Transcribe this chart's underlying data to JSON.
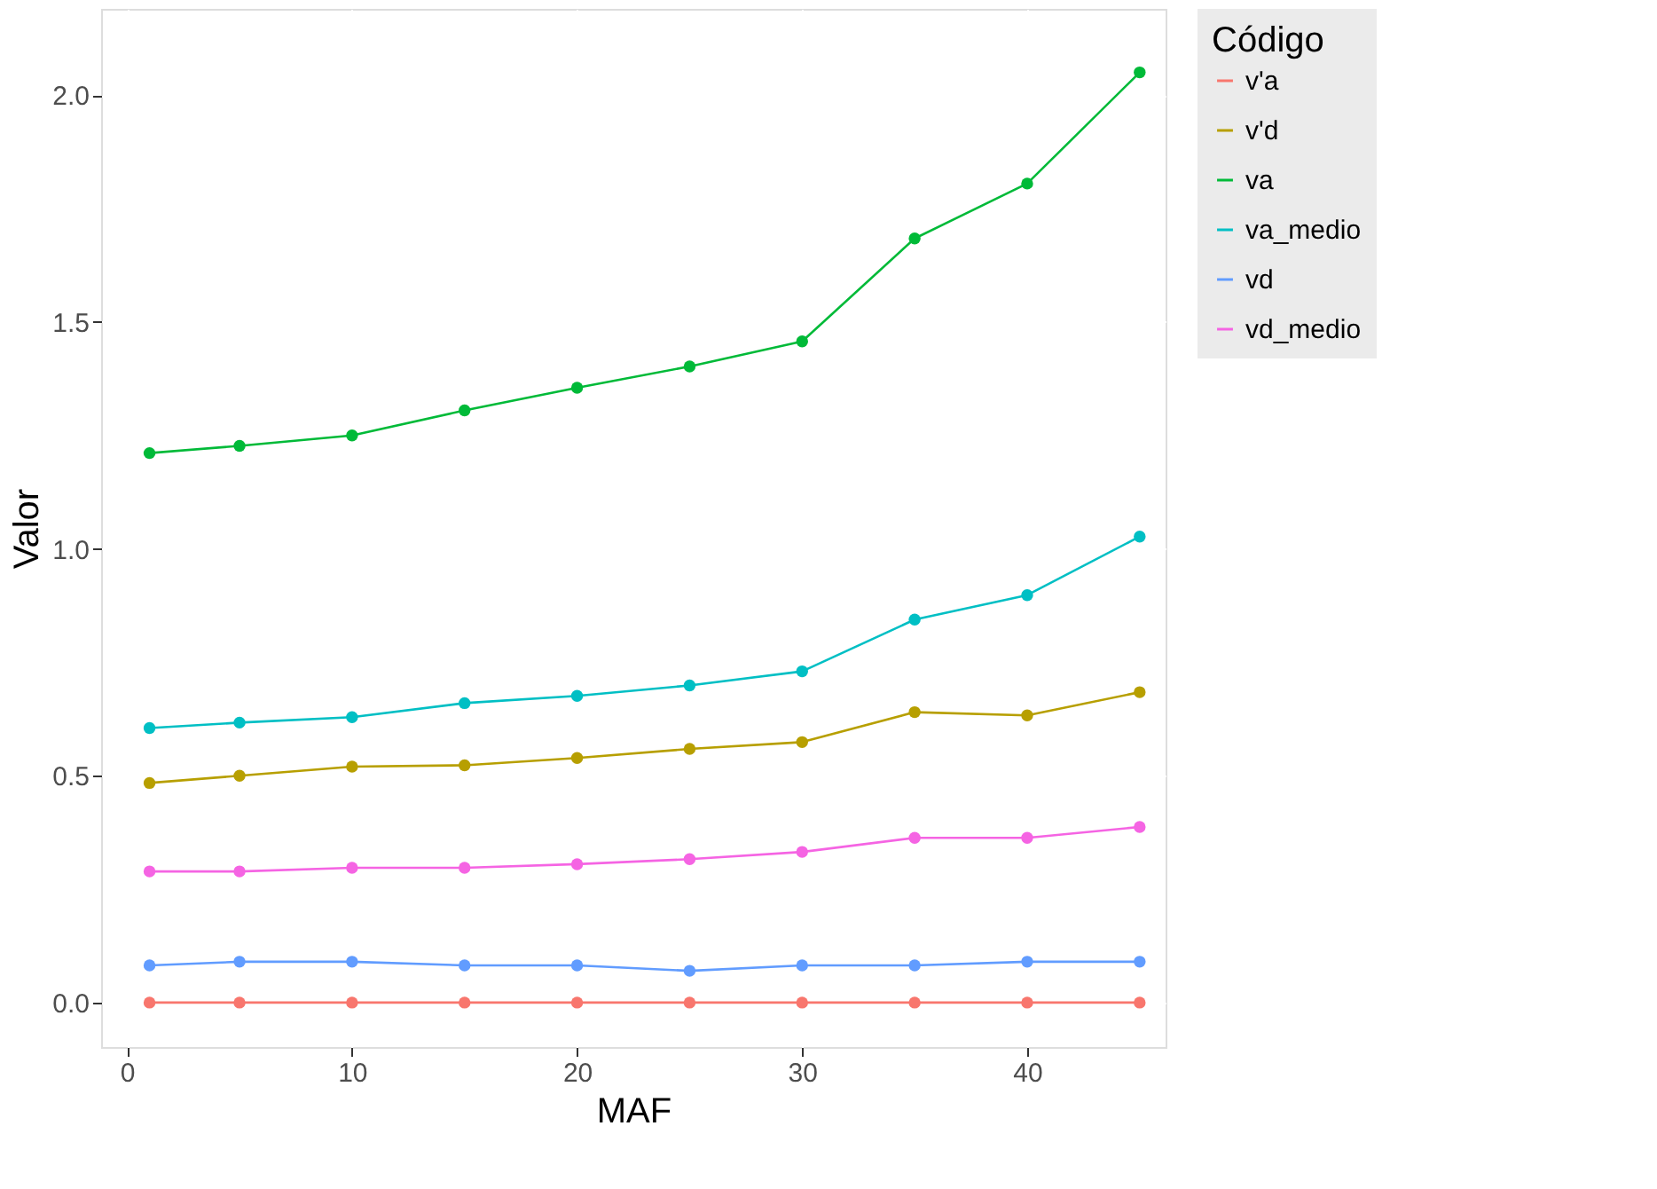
{
  "chart_data": {
    "type": "line",
    "xlabel": "MAF",
    "ylabel": "Valor",
    "legend_title": "Código",
    "x": [
      1,
      5,
      10,
      15,
      20,
      25,
      30,
      35,
      40,
      45
    ],
    "series": [
      {
        "name": "v'a",
        "color": "#f8766d",
        "values": [
          0,
          0,
          0,
          0,
          0,
          0,
          0,
          0,
          0,
          0
        ]
      },
      {
        "name": "v'd",
        "color": "#b79f00",
        "values": [
          0.484,
          0.5,
          0.52,
          0.523,
          0.539,
          0.559,
          0.574,
          0.64,
          0.633,
          0.684
        ]
      },
      {
        "name": "va",
        "color": "#00ba38",
        "values": [
          1.211,
          1.227,
          1.25,
          1.305,
          1.355,
          1.402,
          1.457,
          1.684,
          1.805,
          2.05
        ]
      },
      {
        "name": "va_medio",
        "color": "#00bfc4",
        "values": [
          0.605,
          0.617,
          0.629,
          0.66,
          0.676,
          0.699,
          0.73,
          0.844,
          0.898,
          1.027
        ]
      },
      {
        "name": "vd",
        "color": "#619cff",
        "values": [
          0.082,
          0.09,
          0.09,
          0.082,
          0.082,
          0.07,
          0.082,
          0.082,
          0.09,
          0.09
        ]
      },
      {
        "name": "vd_medio",
        "color": "#f564e3",
        "values": [
          0.289,
          0.289,
          0.297,
          0.297,
          0.305,
          0.316,
          0.332,
          0.363,
          0.363,
          0.387
        ]
      }
    ],
    "xlim": [
      -1.15,
      46.15
    ],
    "ylim": [
      -0.098,
      2.19
    ],
    "xticks": [
      0,
      10,
      20,
      30,
      40
    ],
    "yticks": [
      {
        "value": 0,
        "label": "0.0"
      },
      {
        "value": 0.5,
        "label": "0.5"
      },
      {
        "value": 1,
        "label": "1.0"
      },
      {
        "value": 1.5,
        "label": "1.5"
      },
      {
        "value": 2,
        "label": "2.0"
      }
    ],
    "grid": true,
    "legend": "right",
    "marker": "circle",
    "line_style": "solid"
  }
}
